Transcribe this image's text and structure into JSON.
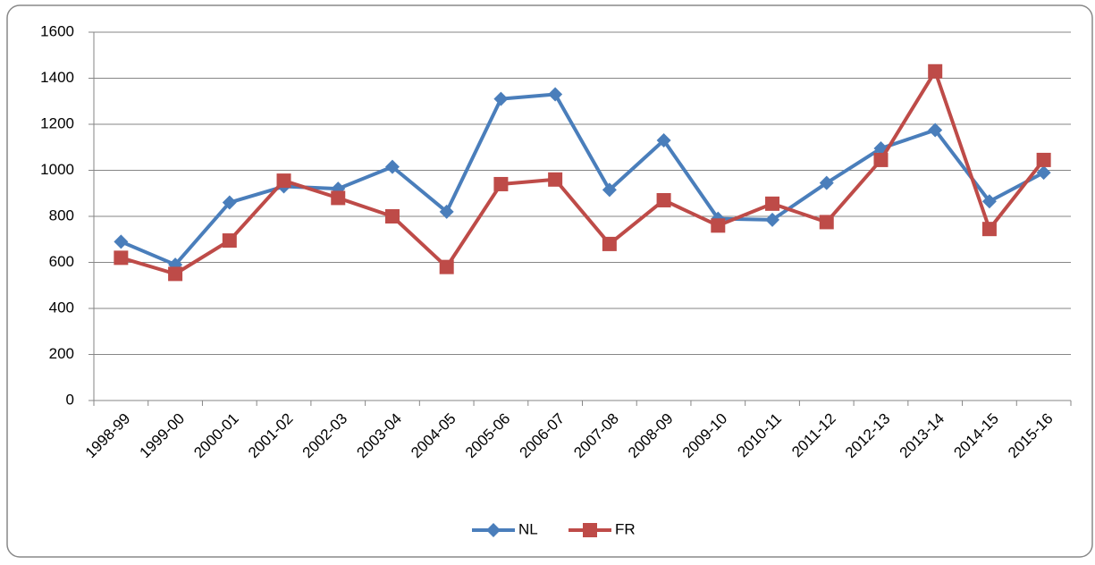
{
  "chart_data": {
    "type": "line",
    "categories": [
      "1998-99",
      "1999-00",
      "2000-01",
      "2001-02",
      "2002-03",
      "2003-04",
      "2004-05",
      "2005-06",
      "2006-07",
      "2007-08",
      "2008-09",
      "2009-10",
      "2010-11",
      "2011-12",
      "2012-13",
      "2013-14",
      "2014-15",
      "2015-16"
    ],
    "series": [
      {
        "name": "NL",
        "color": "#4a7ebb",
        "marker": "diamond",
        "values": [
          690,
          590,
          860,
          930,
          920,
          1015,
          820,
          1310,
          1330,
          915,
          1130,
          790,
          785,
          945,
          1095,
          1175,
          865,
          990
        ]
      },
      {
        "name": "FR",
        "color": "#be4b48",
        "marker": "square",
        "values": [
          620,
          550,
          695,
          955,
          880,
          800,
          580,
          940,
          960,
          680,
          870,
          760,
          855,
          775,
          1045,
          1430,
          745,
          1045
        ]
      }
    ],
    "ylim": [
      0,
      1600
    ],
    "yticks": [
      0,
      200,
      400,
      600,
      800,
      1000,
      1200,
      1400,
      1600
    ],
    "grid": true,
    "legend": "bottom"
  }
}
